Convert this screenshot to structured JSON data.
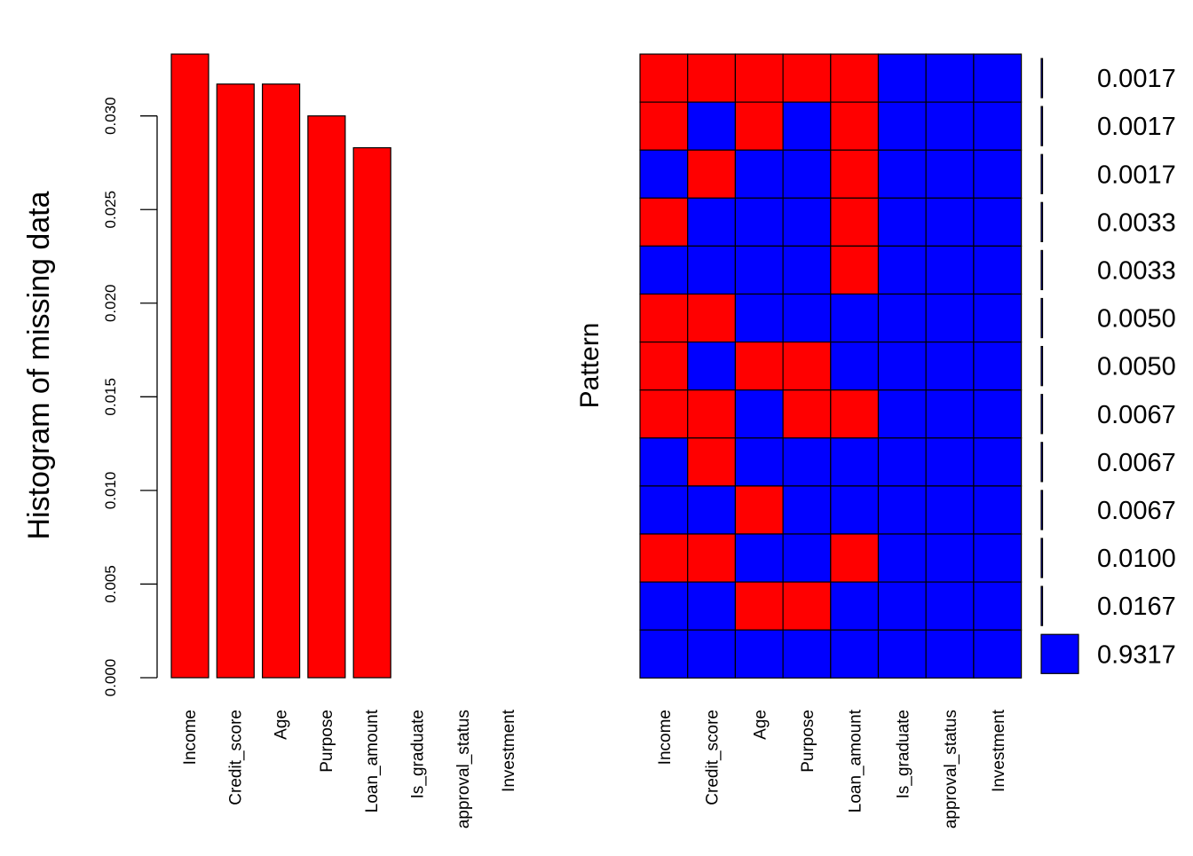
{
  "chart_data": [
    {
      "type": "bar",
      "ylabel": "Histogram of missing data",
      "categories": [
        "Income",
        "Credit_score",
        "Age",
        "Purpose",
        "Loan_amount",
        "Is_graduate",
        "approval_status",
        "Investment"
      ],
      "values": [
        0.0333,
        0.0317,
        0.0317,
        0.03,
        0.0283,
        0,
        0,
        0
      ],
      "ylim": [
        0,
        0.0333
      ],
      "yticks": [
        "0.000",
        "0.005",
        "0.010",
        "0.015",
        "0.020",
        "0.025",
        "0.030"
      ],
      "bar_color": "#ff0000"
    },
    {
      "type": "heatmap",
      "ylabel": "Pattern",
      "columns": [
        "Income",
        "Credit_score",
        "Age",
        "Purpose",
        "Loan_amount",
        "Is_graduate",
        "approval_status",
        "Investment"
      ],
      "missing_color": "#ff0000",
      "present_color": "#0000ff",
      "rows": [
        {
          "frequency": 0.0017,
          "label": "0.0017",
          "missing": [
            1,
            1,
            1,
            1,
            1,
            0,
            0,
            0
          ]
        },
        {
          "frequency": 0.0017,
          "label": "0.0017",
          "missing": [
            1,
            0,
            1,
            0,
            1,
            0,
            0,
            0
          ]
        },
        {
          "frequency": 0.0017,
          "label": "0.0017",
          "missing": [
            0,
            1,
            0,
            0,
            1,
            0,
            0,
            0
          ]
        },
        {
          "frequency": 0.0033,
          "label": "0.0033",
          "missing": [
            1,
            0,
            0,
            0,
            1,
            0,
            0,
            0
          ]
        },
        {
          "frequency": 0.0033,
          "label": "0.0033",
          "missing": [
            0,
            0,
            0,
            0,
            1,
            0,
            0,
            0
          ]
        },
        {
          "frequency": 0.005,
          "label": "0.0050",
          "missing": [
            1,
            1,
            0,
            0,
            0,
            0,
            0,
            0
          ]
        },
        {
          "frequency": 0.005,
          "label": "0.0050",
          "missing": [
            1,
            0,
            1,
            1,
            0,
            0,
            0,
            0
          ]
        },
        {
          "frequency": 0.0067,
          "label": "0.0067",
          "missing": [
            1,
            1,
            0,
            1,
            1,
            0,
            0,
            0
          ]
        },
        {
          "frequency": 0.0067,
          "label": "0.0067",
          "missing": [
            0,
            1,
            0,
            0,
            0,
            0,
            0,
            0
          ]
        },
        {
          "frequency": 0.0067,
          "label": "0.0067",
          "missing": [
            0,
            0,
            1,
            0,
            0,
            0,
            0,
            0
          ]
        },
        {
          "frequency": 0.01,
          "label": "0.0100",
          "missing": [
            1,
            1,
            0,
            0,
            1,
            0,
            0,
            0
          ]
        },
        {
          "frequency": 0.0167,
          "label": "0.0167",
          "missing": [
            0,
            0,
            1,
            1,
            0,
            0,
            0,
            0
          ]
        },
        {
          "frequency": 0.9317,
          "label": "0.9317",
          "missing": [
            0,
            0,
            0,
            0,
            0,
            0,
            0,
            0
          ]
        }
      ]
    }
  ]
}
